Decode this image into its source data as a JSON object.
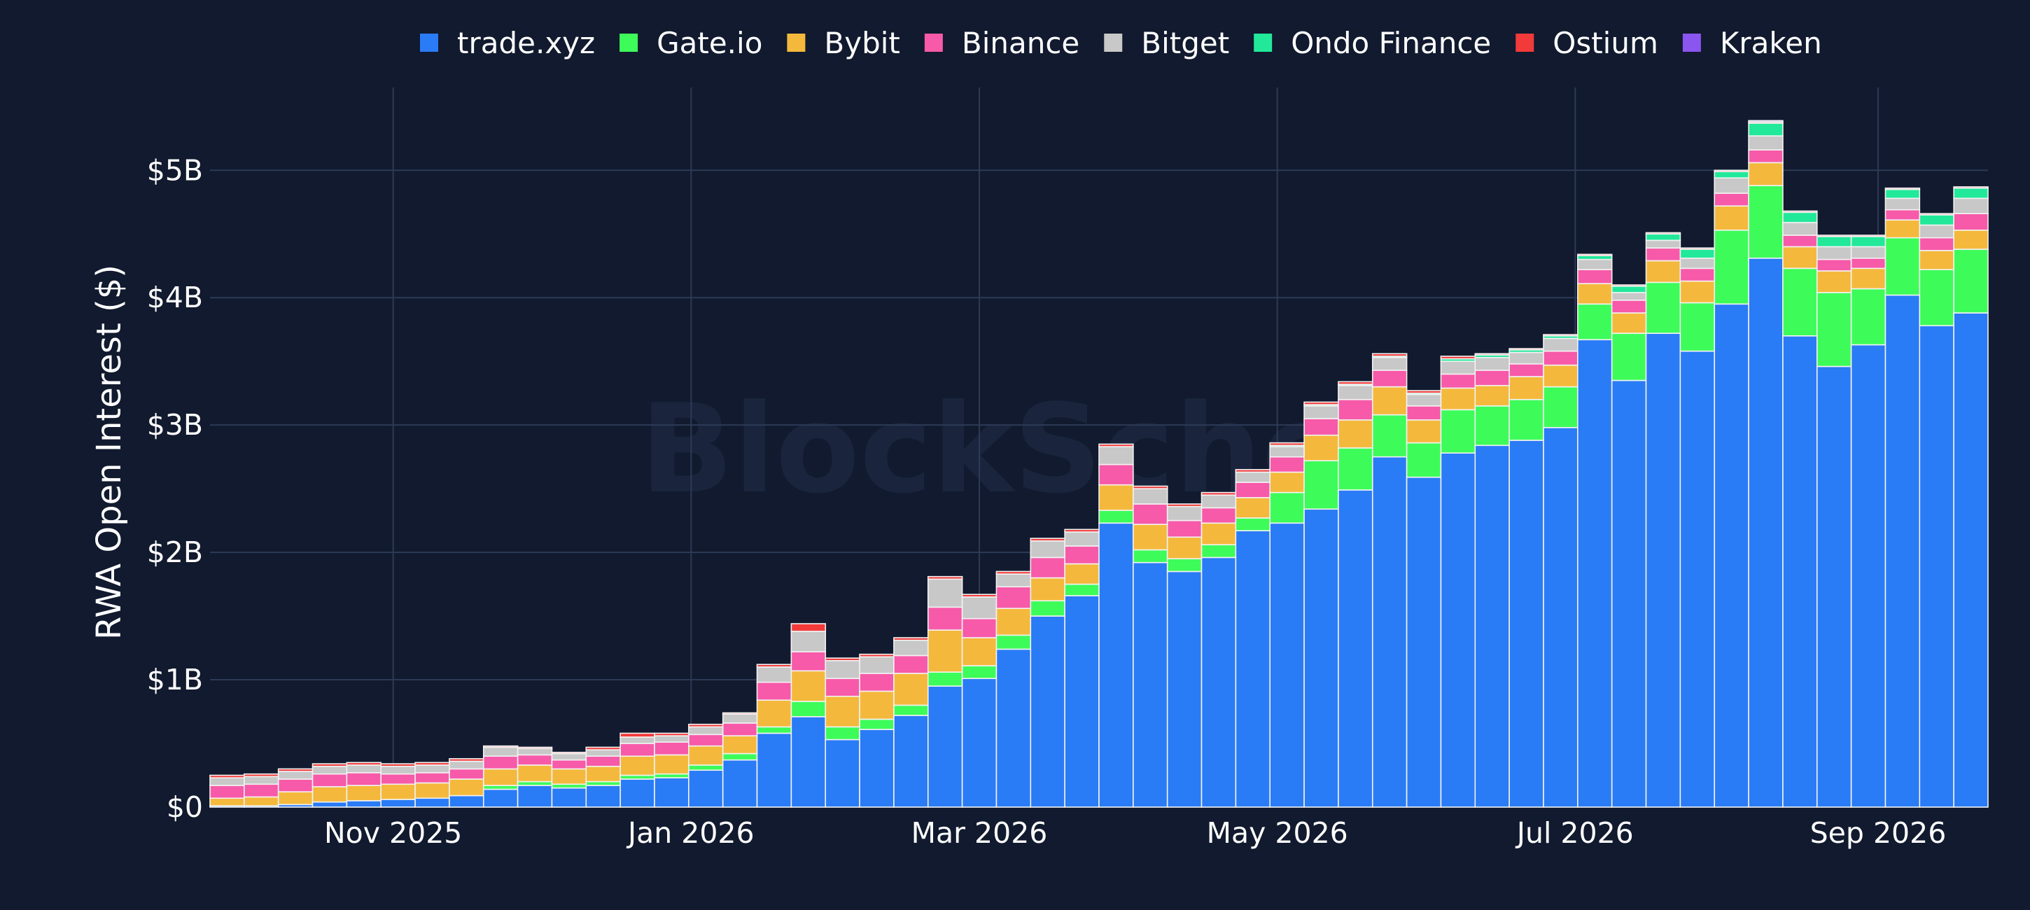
{
  "watermark": "BlockScholes",
  "colors": {
    "background": "#111a2e",
    "grid": "#2d3a56",
    "bar_outline": "#f2f2f2"
  },
  "chart_data": {
    "type": "bar",
    "stacked": true,
    "ylabel": "RWA Open Interest ($)",
    "xlabel": "",
    "ylim": [
      0,
      5650000000
    ],
    "grid": true,
    "legend_position": "top",
    "y_ticks": [
      {
        "value": 0,
        "label": "$0"
      },
      {
        "value": 1000000000,
        "label": "$1B"
      },
      {
        "value": 2000000000,
        "label": "$2B"
      },
      {
        "value": 3000000000,
        "label": "$3B"
      },
      {
        "value": 4000000000,
        "label": "$4B"
      },
      {
        "value": 5000000000,
        "label": "$5B"
      }
    ],
    "x_ticks": [
      {
        "date": "2025-11-01",
        "label": "Nov 2025"
      },
      {
        "date": "2026-01-01",
        "label": "Jan 2026"
      },
      {
        "date": "2026-03-01",
        "label": "Mar 2026"
      },
      {
        "date": "2026-05-01",
        "label": "May 2026"
      },
      {
        "date": "2026-07-01",
        "label": "Jul 2026"
      },
      {
        "date": "2026-09-01",
        "label": "Sep 2026"
      }
    ],
    "x": [
      "2025-09-28",
      "2025-10-05",
      "2025-10-12",
      "2025-10-19",
      "2025-10-26",
      "2025-11-02",
      "2025-11-09",
      "2025-11-16",
      "2025-11-23",
      "2025-11-30",
      "2025-12-07",
      "2025-12-14",
      "2025-12-21",
      "2025-12-28",
      "2026-01-04",
      "2026-01-11",
      "2026-01-18",
      "2026-01-25",
      "2026-02-01",
      "2026-02-08",
      "2026-02-15",
      "2026-02-22",
      "2026-03-01",
      "2026-03-08",
      "2026-03-15",
      "2026-03-22",
      "2026-03-29",
      "2026-04-05",
      "2026-04-12",
      "2026-04-19",
      "2026-04-26",
      "2026-05-03",
      "2026-05-10",
      "2026-05-17",
      "2026-05-24",
      "2026-05-31",
      "2026-06-07",
      "2026-06-14",
      "2026-06-21",
      "2026-06-28",
      "2026-07-05",
      "2026-07-12",
      "2026-07-19",
      "2026-07-26",
      "2026-08-02",
      "2026-08-09",
      "2026-08-16",
      "2026-08-23",
      "2026-08-30",
      "2026-09-06",
      "2026-09-13",
      "2026-09-20"
    ],
    "series": [
      {
        "name": "trade.xyz",
        "color": "#2a7bf6",
        "values": [
          0.01,
          0.01,
          0.02,
          0.04,
          0.05,
          0.06,
          0.07,
          0.09,
          0.14,
          0.17,
          0.15,
          0.17,
          0.22,
          0.23,
          0.29,
          0.37,
          0.58,
          0.71,
          0.53,
          0.61,
          0.72,
          0.95,
          1.01,
          1.24,
          1.5,
          1.66,
          2.23,
          1.92,
          1.85,
          1.96,
          2.17,
          2.23,
          2.34,
          2.49,
          2.75,
          2.59,
          2.78,
          2.84,
          2.88,
          2.98,
          3.67,
          3.35,
          3.72,
          3.58,
          3.95,
          4.31,
          3.7,
          3.46,
          3.63,
          4.02,
          3.78,
          3.88
        ]
      },
      {
        "name": "Gate.io",
        "color": "#3dfc5a",
        "values": [
          0.0,
          0.0,
          0.0,
          0.0,
          0.0,
          0.0,
          0.0,
          0.0,
          0.03,
          0.03,
          0.03,
          0.03,
          0.03,
          0.03,
          0.04,
          0.05,
          0.05,
          0.12,
          0.1,
          0.08,
          0.08,
          0.11,
          0.1,
          0.11,
          0.12,
          0.09,
          0.1,
          0.1,
          0.1,
          0.1,
          0.1,
          0.24,
          0.38,
          0.33,
          0.33,
          0.27,
          0.34,
          0.31,
          0.32,
          0.32,
          0.28,
          0.37,
          0.4,
          0.38,
          0.58,
          0.57,
          0.53,
          0.58,
          0.44,
          0.45,
          0.44,
          0.5
        ]
      },
      {
        "name": "Bybit",
        "color": "#f4b93c",
        "values": [
          0.06,
          0.07,
          0.1,
          0.12,
          0.12,
          0.12,
          0.12,
          0.13,
          0.13,
          0.13,
          0.12,
          0.12,
          0.15,
          0.15,
          0.15,
          0.14,
          0.21,
          0.24,
          0.24,
          0.22,
          0.25,
          0.33,
          0.22,
          0.21,
          0.18,
          0.16,
          0.2,
          0.2,
          0.17,
          0.17,
          0.16,
          0.16,
          0.2,
          0.22,
          0.22,
          0.18,
          0.17,
          0.16,
          0.18,
          0.17,
          0.16,
          0.16,
          0.17,
          0.17,
          0.19,
          0.18,
          0.17,
          0.17,
          0.16,
          0.14,
          0.15,
          0.15
        ]
      },
      {
        "name": "Binance",
        "color": "#f75aa8",
        "values": [
          0.1,
          0.1,
          0.1,
          0.1,
          0.1,
          0.08,
          0.08,
          0.08,
          0.1,
          0.08,
          0.07,
          0.08,
          0.1,
          0.1,
          0.09,
          0.1,
          0.14,
          0.15,
          0.14,
          0.14,
          0.14,
          0.18,
          0.15,
          0.17,
          0.16,
          0.14,
          0.16,
          0.16,
          0.13,
          0.12,
          0.12,
          0.12,
          0.13,
          0.16,
          0.13,
          0.11,
          0.11,
          0.12,
          0.1,
          0.11,
          0.11,
          0.1,
          0.1,
          0.1,
          0.1,
          0.1,
          0.09,
          0.09,
          0.08,
          0.08,
          0.1,
          0.13
        ]
      },
      {
        "name": "Bitget",
        "color": "#c8c8c8",
        "values": [
          0.06,
          0.06,
          0.06,
          0.06,
          0.06,
          0.06,
          0.06,
          0.06,
          0.07,
          0.05,
          0.05,
          0.05,
          0.05,
          0.05,
          0.06,
          0.07,
          0.12,
          0.16,
          0.14,
          0.13,
          0.12,
          0.22,
          0.17,
          0.1,
          0.13,
          0.11,
          0.14,
          0.12,
          0.11,
          0.1,
          0.08,
          0.08,
          0.1,
          0.11,
          0.1,
          0.09,
          0.1,
          0.1,
          0.09,
          0.1,
          0.08,
          0.06,
          0.06,
          0.08,
          0.12,
          0.11,
          0.1,
          0.1,
          0.09,
          0.09,
          0.1,
          0.12
        ]
      },
      {
        "name": "Ondo Finance",
        "color": "#22e89a",
        "values": [
          0.0,
          0.0,
          0.0,
          0.0,
          0.0,
          0.0,
          0.0,
          0.0,
          0.0,
          0.0,
          0.0,
          0.0,
          0.0,
          0.0,
          0.0,
          0.0,
          0.0,
          0.0,
          0.0,
          0.0,
          0.0,
          0.0,
          0.0,
          0.0,
          0.0,
          0.0,
          0.0,
          0.0,
          0.0,
          0.0,
          0.0,
          0.01,
          0.01,
          0.01,
          0.01,
          0.01,
          0.02,
          0.02,
          0.02,
          0.02,
          0.03,
          0.05,
          0.05,
          0.07,
          0.05,
          0.1,
          0.08,
          0.08,
          0.08,
          0.07,
          0.08,
          0.08
        ]
      },
      {
        "name": "Ostium",
        "color": "#f23a3a",
        "values": [
          0.02,
          0.02,
          0.02,
          0.02,
          0.02,
          0.02,
          0.02,
          0.02,
          0.01,
          0.01,
          0.01,
          0.02,
          0.03,
          0.02,
          0.02,
          0.01,
          0.02,
          0.06,
          0.02,
          0.02,
          0.02,
          0.02,
          0.02,
          0.02,
          0.02,
          0.02,
          0.02,
          0.02,
          0.02,
          0.02,
          0.02,
          0.02,
          0.02,
          0.02,
          0.02,
          0.02,
          0.02,
          0.01,
          0.01,
          0.01,
          0.01,
          0.01,
          0.01,
          0.01,
          0.01,
          0.01,
          0.01,
          0.01,
          0.01,
          0.01,
          0.01,
          0.01
        ]
      },
      {
        "name": "Kraken",
        "color": "#8b55f0",
        "values": [
          0.0,
          0.0,
          0.0,
          0.0,
          0.0,
          0.0,
          0.0,
          0.0,
          0.0,
          0.0,
          0.0,
          0.0,
          0.0,
          0.0,
          0.0,
          0.0,
          0.0,
          0.0,
          0.0,
          0.0,
          0.0,
          0.0,
          0.0,
          0.0,
          0.0,
          0.0,
          0.0,
          0.0,
          0.0,
          0.0,
          0.0,
          0.0,
          0.0,
          0.0,
          0.0,
          0.0,
          0.0,
          0.0,
          0.0,
          0.0,
          0.0,
          0.0,
          0.0,
          0.0,
          0.0,
          0.01,
          0.0,
          0.0,
          0.0,
          0.0,
          0.0,
          0.0
        ]
      }
    ],
    "value_unit_multiplier": 1000000000
  }
}
